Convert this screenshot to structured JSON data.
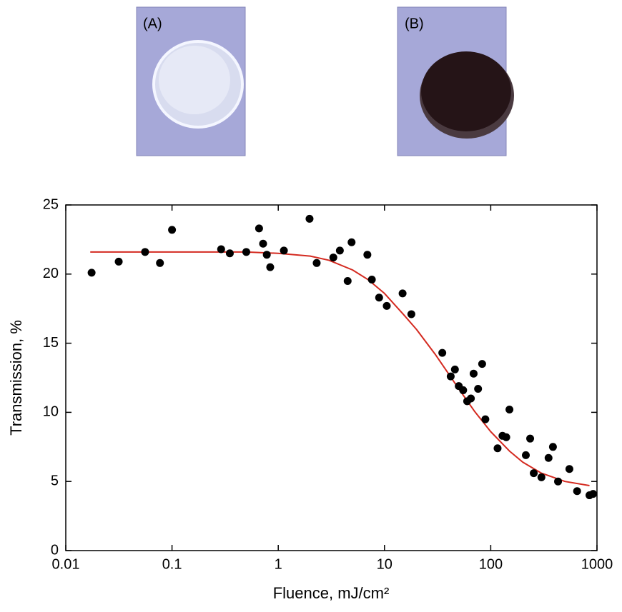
{
  "panels": [
    {
      "label": "(A)"
    },
    {
      "label": "(B)"
    }
  ],
  "chart_data": {
    "type": "scatter",
    "x_label": "Fluence, mJ/cm²",
    "y_label": "Transmission, %",
    "xlim": [
      0.01,
      1000
    ],
    "ylim": [
      0,
      25
    ],
    "xticks": [
      0.01,
      0.1,
      1,
      10,
      100,
      1000
    ],
    "yticks": [
      0,
      5,
      10,
      15,
      20,
      25
    ],
    "xscale": "log",
    "series": [
      {
        "type": "scatter",
        "color": "#000000",
        "x": [
          0.0175,
          0.0315,
          0.0558,
          0.077,
          0.1,
          0.29,
          0.35,
          0.5,
          0.66,
          0.72,
          0.78,
          0.84,
          1.13,
          1.97,
          2.3,
          3.3,
          3.8,
          4.5,
          4.9,
          6.9,
          7.6,
          8.9,
          10.5,
          14.8,
          17.9,
          35,
          42,
          46,
          50,
          55,
          60,
          65,
          69,
          76,
          83,
          89,
          116,
          129,
          140,
          150,
          214,
          235,
          254,
          300,
          350,
          385,
          430,
          550,
          650,
          850,
          920
        ],
        "values": [
          20.1,
          20.9,
          21.6,
          20.8,
          23.2,
          21.8,
          21.5,
          21.6,
          23.3,
          22.2,
          21.4,
          20.5,
          21.7,
          24.0,
          20.8,
          21.2,
          21.7,
          19.5,
          22.3,
          21.4,
          19.6,
          18.3,
          17.7,
          18.6,
          17.1,
          14.3,
          12.6,
          13.1,
          11.9,
          11.6,
          10.8,
          11.0,
          12.8,
          11.7,
          13.5,
          9.5,
          7.4,
          8.3,
          8.2,
          10.2,
          6.9,
          8.1,
          5.6,
          5.3,
          6.7,
          7.5,
          5.0,
          5.9,
          4.3,
          4.0,
          4.1
        ]
      },
      {
        "type": "line",
        "color": "#d42a20",
        "x": [
          0.017,
          0.1,
          0.5,
          1,
          2,
          3,
          5,
          7,
          10,
          15,
          20,
          30,
          40,
          50,
          70,
          100,
          150,
          200,
          300,
          500,
          850
        ],
        "values": [
          21.6,
          21.6,
          21.6,
          21.5,
          21.3,
          21.0,
          20.3,
          19.6,
          18.6,
          17.1,
          16.0,
          14.2,
          12.8,
          11.7,
          10.1,
          8.6,
          7.2,
          6.4,
          5.6,
          5.0,
          4.7
        ]
      }
    ]
  }
}
